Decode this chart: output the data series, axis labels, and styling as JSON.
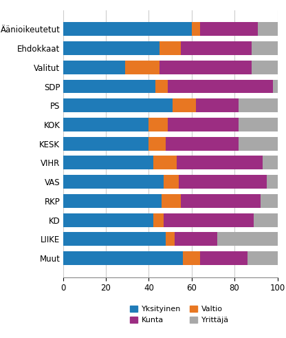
{
  "categories": [
    "Äänioikeutetut",
    "Ehdokkaat",
    "Valitut",
    "SDP",
    "PS",
    "KOK",
    "KESK",
    "VIHR",
    "VAS",
    "RKP",
    "KD",
    "LIIKE",
    "Muut"
  ],
  "segments": {
    "Yksityinen": [
      60,
      45,
      29,
      43,
      51,
      40,
      40,
      42,
      47,
      46,
      42,
      48,
      56
    ],
    "Valtio": [
      4,
      10,
      16,
      6,
      11,
      9,
      8,
      11,
      7,
      9,
      5,
      4,
      8
    ],
    "Kunta": [
      27,
      33,
      43,
      49,
      20,
      33,
      34,
      40,
      41,
      37,
      42,
      20,
      22
    ],
    "Yrittäjä": [
      9,
      12,
      12,
      2,
      18,
      18,
      18,
      7,
      5,
      8,
      11,
      28,
      14
    ]
  },
  "colors": {
    "Yksityinen": "#1f7bb8",
    "Valtio": "#e87722",
    "Kunta": "#9c2d82",
    "Yrittäjä": "#a8a8a8"
  },
  "legend_labels": [
    "Yksityinen",
    "Valtio",
    "Kunta",
    "Yrittäjä"
  ],
  "xlim": [
    0,
    100
  ],
  "xticks": [
    0,
    20,
    40,
    60,
    80,
    100
  ],
  "background_color": "#ffffff",
  "bar_height": 0.72,
  "grid_color": "#cccccc"
}
